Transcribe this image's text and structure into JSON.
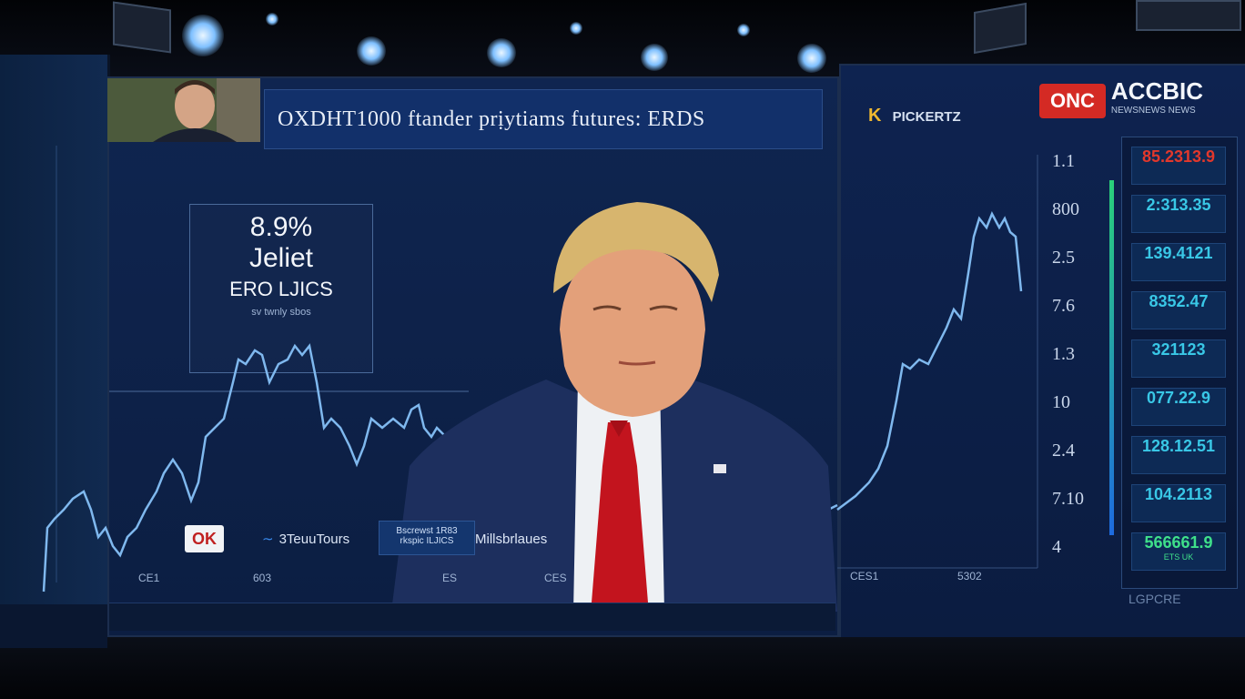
{
  "main_screen": {
    "headline": "OXDHT1000 ftander prịytiams futures: ERDS"
  },
  "stat_box": {
    "percent": "8.9%",
    "name": "Jeliet",
    "subtitle": "ERO LJICS",
    "caption": "sv twnly sbos"
  },
  "right_panel": {
    "logo_letter": "K",
    "logo_text": "PICKERTZ",
    "brand_badge": "ONC",
    "brand_name": "ACCBIC",
    "brand_tagline": "NEWSNEWS NEWS",
    "axis_labels": [
      "1.1",
      "800",
      "2.5",
      "7.6",
      "1.3",
      "10",
      "2.4",
      "7.10",
      "4"
    ],
    "tickers": [
      {
        "value": "85.2313.9",
        "sub": "",
        "color": "#e2382c"
      },
      {
        "value": "2:313.35",
        "sub": "",
        "color": "#39c7e6"
      },
      {
        "value": "139.4121",
        "sub": "",
        "color": "#39c7e6"
      },
      {
        "value": "8352.47",
        "sub": "",
        "color": "#39c7e6"
      },
      {
        "value": "321123",
        "sub": "",
        "color": "#39c7e6"
      },
      {
        "value": "077.22.9",
        "sub": "",
        "color": "#39c7e6"
      },
      {
        "value": "128.12.51",
        "sub": "",
        "color": "#39c7e6"
      },
      {
        "value": "104.2113",
        "sub": "",
        "color": "#39c7e6"
      },
      {
        "value": "566661.9",
        "sub": "ETS UK",
        "color": "#3fe08a"
      }
    ]
  },
  "lower_third": {
    "logo_ok": "OK",
    "tours_text": "3TeuuTours",
    "box_line1": "Bscrewst 1R83",
    "box_line2": "rkspic ILJICS",
    "mid_text": "Millsbrlaues"
  },
  "x_labels": [
    "CE1",
    "603",
    "ES",
    "CES",
    "CES1",
    "5302"
  ],
  "colors": {
    "accent_line": "#7fb8ee",
    "screen_blue": "#0f2550",
    "brand_red": "#d42a24"
  }
}
